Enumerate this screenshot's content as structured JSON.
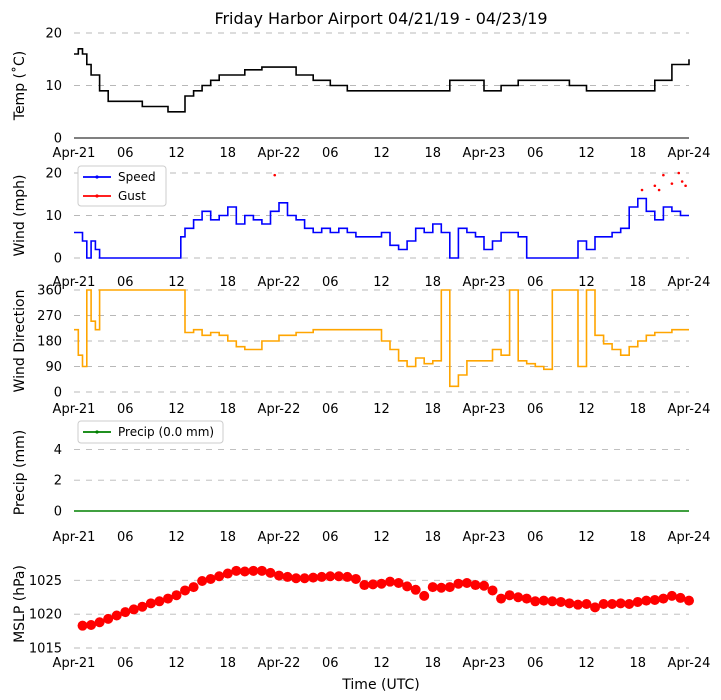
{
  "title": "Friday Harbor Airport 04/21/19 - 04/23/19",
  "x_axis_label": "Time (UTC)",
  "x_tick_labels": [
    "Apr-21",
    "06",
    "12",
    "18",
    "Apr-22",
    "06",
    "12",
    "18",
    "Apr-23",
    "06",
    "12",
    "18",
    "Apr-24"
  ],
  "chart_data": [
    {
      "type": "line",
      "ylabel": "Temp ($^\\circ$C)",
      "ylabel_display": "Temp (˚C)",
      "ylim": [
        0,
        20
      ],
      "yticks": [
        0,
        10,
        20
      ],
      "grid": true,
      "series": [
        {
          "color": "#000000",
          "x_hours": [
            0,
            0.5,
            1,
            1.5,
            2,
            3,
            4,
            5,
            6,
            8,
            10,
            11,
            12,
            13,
            14,
            15,
            16,
            17,
            18,
            20,
            22,
            24,
            26,
            28,
            30,
            32,
            34,
            36,
            38,
            40,
            42,
            44,
            46,
            48,
            50,
            52,
            54,
            56,
            58,
            60,
            62,
            64,
            66,
            68,
            70,
            72
          ],
          "values": [
            16,
            17,
            16,
            14,
            12,
            9,
            7,
            7,
            7,
            6,
            6,
            5,
            5,
            8,
            9,
            10,
            11,
            12,
            12,
            13,
            13.5,
            13.5,
            12,
            11,
            10,
            9,
            9,
            9,
            9,
            9,
            9,
            11,
            11,
            9,
            10,
            11,
            11,
            11,
            10,
            9,
            9,
            9,
            9,
            11,
            14,
            15
          ]
        }
      ]
    },
    {
      "type": "line",
      "ylabel": "Wind (mph)",
      "ylim": [
        0,
        20
      ],
      "yticks": [
        0,
        10,
        20
      ],
      "grid": true,
      "legend": "top-left",
      "series": [
        {
          "name": "Speed",
          "color": "#0000ff",
          "x_hours": [
            0,
            1,
            1.5,
            2,
            2.5,
            3,
            12,
            12.5,
            13,
            14,
            15,
            16,
            17,
            18,
            19,
            20,
            21,
            22,
            23,
            24,
            25,
            26,
            27,
            28,
            29,
            30,
            31,
            32,
            33,
            34,
            35,
            36,
            37,
            38,
            39,
            40,
            41,
            42,
            43,
            44,
            45,
            46,
            47,
            48,
            49,
            50,
            51,
            52,
            53,
            54,
            55,
            56,
            57,
            58,
            59,
            60,
            61,
            62,
            63,
            64,
            65,
            66,
            67,
            68,
            69,
            70,
            71,
            72
          ],
          "values": [
            6,
            4,
            0,
            4,
            2,
            0,
            0,
            5,
            7,
            9,
            11,
            9,
            10,
            12,
            8,
            10,
            9,
            8,
            11,
            13,
            10,
            9,
            7,
            6,
            7,
            6,
            7,
            6,
            5,
            5,
            5,
            6,
            3,
            2,
            4,
            7,
            6,
            8,
            6,
            0,
            7,
            6,
            5,
            2,
            4,
            6,
            6,
            5,
            0,
            0,
            0,
            0,
            0,
            0,
            4,
            2,
            5,
            5,
            6,
            7,
            12,
            14,
            11,
            9,
            12,
            11,
            10,
            10
          ]
        },
        {
          "name": "Gust",
          "color": "#ff0000",
          "points": [
            [
              23.5,
              19.5
            ],
            [
              66.5,
              16
            ],
            [
              68,
              17
            ],
            [
              68.5,
              16
            ],
            [
              69,
              19.5
            ],
            [
              70,
              17.5
            ],
            [
              70.8,
              20
            ],
            [
              71.2,
              18
            ],
            [
              71.6,
              17
            ]
          ]
        }
      ]
    },
    {
      "type": "line",
      "ylabel": "Wind Direction",
      "ylim": [
        0,
        360
      ],
      "yticks": [
        0,
        90,
        180,
        270,
        360
      ],
      "grid": true,
      "series": [
        {
          "color": "#ffa500",
          "x_hours": [
            0,
            0.5,
            1,
            1.5,
            2,
            2.5,
            3,
            4,
            6,
            8,
            10,
            12,
            13,
            14,
            15,
            16,
            17,
            18,
            19,
            20,
            22,
            24,
            26,
            28,
            30,
            32,
            34,
            36,
            37,
            38,
            39,
            40,
            41,
            42,
            43,
            44,
            45,
            46,
            48,
            49,
            50,
            51,
            52,
            53,
            54,
            55,
            56,
            57,
            58,
            59,
            60,
            61,
            62,
            63,
            64,
            65,
            66,
            67,
            68,
            70,
            72
          ],
          "values": [
            220,
            130,
            90,
            360,
            250,
            220,
            360,
            360,
            360,
            360,
            360,
            360,
            210,
            220,
            200,
            210,
            200,
            180,
            160,
            150,
            180,
            200,
            210,
            220,
            220,
            220,
            220,
            180,
            150,
            110,
            90,
            120,
            100,
            110,
            360,
            20,
            60,
            110,
            110,
            150,
            130,
            360,
            110,
            100,
            90,
            80,
            360,
            360,
            360,
            90,
            360,
            200,
            170,
            150,
            130,
            160,
            180,
            200,
            210,
            220,
            220
          ]
        }
      ]
    },
    {
      "type": "line",
      "ylabel": "Precip (mm)",
      "ylim": [
        0,
        5
      ],
      "yticks": [
        0,
        2,
        4
      ],
      "grid": true,
      "legend": "top-left",
      "series": [
        {
          "name": "Precip (0.0 mm)",
          "color": "#008000",
          "x_hours": [
            0,
            72
          ],
          "values": [
            0,
            0
          ]
        }
      ]
    },
    {
      "type": "scatter",
      "ylabel": "MSLP (hPa)",
      "ylim": [
        1015,
        1028
      ],
      "yticks": [
        1015,
        1020,
        1025
      ],
      "grid": true,
      "series": [
        {
          "color": "#ff0000",
          "x_hours": [
            1,
            2,
            3,
            4,
            5,
            6,
            7,
            8,
            9,
            10,
            11,
            12,
            13,
            14,
            15,
            16,
            17,
            18,
            19,
            20,
            21,
            22,
            23,
            24,
            25,
            26,
            27,
            28,
            29,
            30,
            31,
            32,
            33,
            34,
            35,
            36,
            37,
            38,
            39,
            40,
            41,
            42,
            43,
            44,
            45,
            46,
            47,
            48,
            49,
            50,
            51,
            52,
            53,
            54,
            55,
            56,
            57,
            58,
            59,
            60,
            61,
            62,
            63,
            64,
            65,
            66,
            67,
            68,
            69,
            70,
            71,
            72
          ],
          "values": [
            1018.3,
            1018.4,
            1018.8,
            1019.3,
            1019.8,
            1020.3,
            1020.7,
            1021.1,
            1021.6,
            1021.9,
            1022.3,
            1022.8,
            1023.5,
            1024.0,
            1024.9,
            1025.2,
            1025.6,
            1026.0,
            1026.4,
            1026.3,
            1026.4,
            1026.4,
            1026.1,
            1025.7,
            1025.5,
            1025.3,
            1025.3,
            1025.4,
            1025.5,
            1025.6,
            1025.6,
            1025.5,
            1025.2,
            1024.3,
            1024.4,
            1024.5,
            1024.8,
            1024.6,
            1024.1,
            1023.6,
            1022.7,
            1024.0,
            1023.9,
            1024.0,
            1024.5,
            1024.6,
            1024.3,
            1024.2,
            1023.5,
            1022.3,
            1022.8,
            1022.5,
            1022.3,
            1021.9,
            1022.0,
            1021.9,
            1021.8,
            1021.6,
            1021.4,
            1021.5,
            1021.0,
            1021.5,
            1021.5,
            1021.6,
            1021.5,
            1021.8,
            1022.0,
            1022.1,
            1022.3,
            1022.7,
            1022.4,
            1022.0
          ]
        }
      ]
    }
  ]
}
